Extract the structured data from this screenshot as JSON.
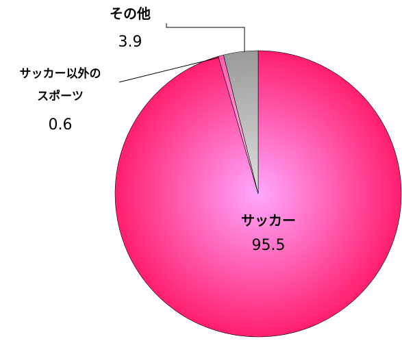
{
  "chart_data": {
    "type": "pie",
    "title": "",
    "start_angle_deg": 0,
    "direction": "clockwise",
    "slices": [
      {
        "label_lines": [
          "サッカー"
        ],
        "value": 95.5,
        "value_label": "95.5",
        "color": "#ff1f6e",
        "highlight": "#ffa8ff"
      },
      {
        "label_lines": [
          "サッカー以外の",
          "スポーツ"
        ],
        "value": 0.6,
        "value_label": "0.6",
        "color": "#ff5cae",
        "highlight": "#ffd0f0"
      },
      {
        "label_lines": [
          "その他"
        ],
        "value": 3.9,
        "value_label": "3.9",
        "color": "#9a9a9a",
        "highlight": "#e0e0e0"
      }
    ]
  }
}
